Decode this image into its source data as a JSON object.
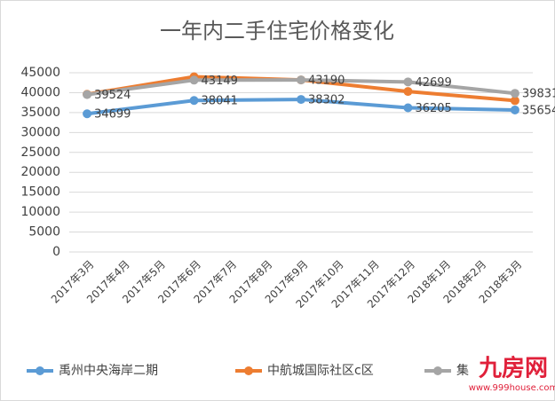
{
  "chart_data": {
    "type": "line",
    "title": "一年内二手住宅价格变化",
    "categories": [
      "2017年3月",
      "2017年4月",
      "2017年5月",
      "2017年6月",
      "2017年7月",
      "2017年8月",
      "2017年9月",
      "2017年10月",
      "2017年11月",
      "2017年12月",
      "2018年1月",
      "2018年2月",
      "2018年3月"
    ],
    "series": [
      {
        "name": "禹州中央海岸二期",
        "color": "#5b9bd5",
        "values": [
          34699,
          null,
          null,
          38041,
          null,
          null,
          38302,
          null,
          null,
          36205,
          null,
          null,
          35654
        ]
      },
      {
        "name": "中航城国际社区c区",
        "color": "#ed7d31",
        "values": [
          39600,
          null,
          null,
          44000,
          null,
          null,
          43200,
          null,
          null,
          40300,
          null,
          null,
          38000
        ]
      },
      {
        "name": "集",
        "color": "#a5a5a5",
        "values": [
          39524,
          null,
          null,
          43149,
          null,
          null,
          43190,
          null,
          null,
          42699,
          null,
          null,
          39831
        ]
      }
    ],
    "labeled_series": [
      0,
      2
    ],
    "ylim": [
      0,
      45000
    ],
    "yticks": [
      0,
      5000,
      10000,
      15000,
      20000,
      25000,
      30000,
      35000,
      40000,
      45000
    ],
    "grid": true,
    "watermark": {
      "brand": "九房网",
      "url": "www.999house.com"
    }
  }
}
